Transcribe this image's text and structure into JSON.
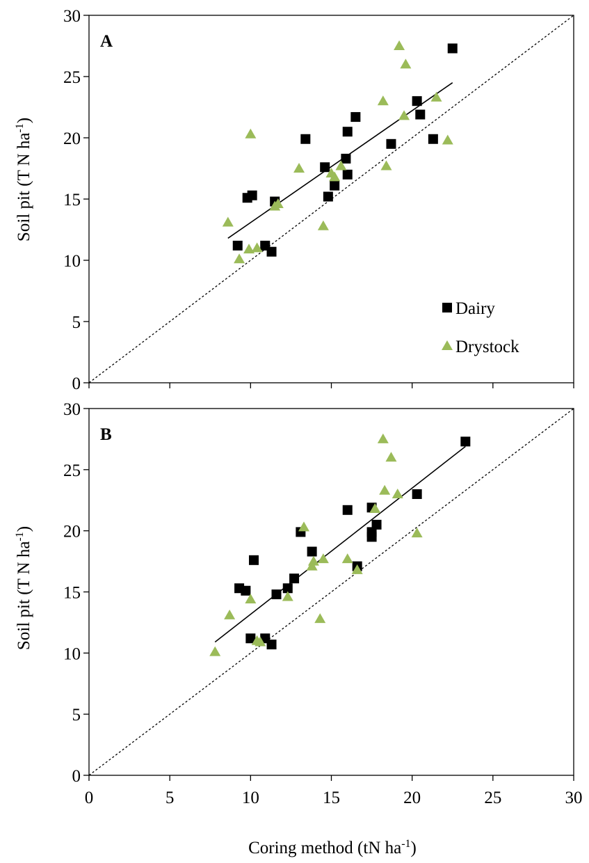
{
  "figure": {
    "xlabel_main": "Coring method (tN ha",
    "xlabel_sup": "-1",
    "xlabel_tail": ")",
    "ylabel_main": "Soil pit (T N ha",
    "ylabel_sup": "-1",
    "ylabel_tail": ")"
  },
  "legend": {
    "dairy": "Dairy",
    "drystock": "Drystock"
  },
  "colors": {
    "dairy": "#000000",
    "drystock": "#9bbb59",
    "axis": "#000000"
  },
  "chart_data": [
    {
      "type": "scatter",
      "panel_label": "A",
      "xlim": [
        0,
        30
      ],
      "ylim": [
        0,
        30
      ],
      "y_ticks": [
        0,
        5,
        10,
        15,
        20,
        25,
        30
      ],
      "x_ticks": [
        0,
        5,
        10,
        15,
        20,
        25,
        30
      ],
      "show_x_tick_labels": false,
      "show_legend": true,
      "legend_position": "bottom-right",
      "one_to_one_line": true,
      "series": [
        {
          "name": "Dairy",
          "marker": "square",
          "points": [
            [
              9.2,
              11.2
            ],
            [
              9.8,
              15.1
            ],
            [
              10.1,
              15.3
            ],
            [
              10.9,
              11.2
            ],
            [
              11.3,
              10.7
            ],
            [
              11.5,
              14.8
            ],
            [
              13.4,
              19.9
            ],
            [
              14.6,
              17.6
            ],
            [
              14.8,
              15.2
            ],
            [
              15.2,
              16.1
            ],
            [
              15.9,
              18.3
            ],
            [
              16.0,
              17.0
            ],
            [
              16.0,
              20.5
            ],
            [
              16.5,
              21.7
            ],
            [
              18.7,
              19.5
            ],
            [
              20.3,
              23.0
            ],
            [
              20.5,
              21.9
            ],
            [
              21.3,
              19.9
            ],
            [
              22.5,
              27.3
            ]
          ],
          "trendline": [
            [
              8.6,
              11.8
            ],
            [
              22.5,
              24.5
            ]
          ]
        },
        {
          "name": "Drystock",
          "marker": "triangle",
          "points": [
            [
              8.6,
              13.1
            ],
            [
              9.3,
              10.1
            ],
            [
              9.9,
              10.9
            ],
            [
              10.0,
              20.3
            ],
            [
              10.4,
              11.0
            ],
            [
              11.5,
              14.4
            ],
            [
              11.7,
              14.6
            ],
            [
              13.0,
              17.5
            ],
            [
              14.5,
              12.8
            ],
            [
              15.0,
              17.1
            ],
            [
              15.2,
              16.8
            ],
            [
              15.6,
              17.7
            ],
            [
              18.2,
              23.0
            ],
            [
              18.4,
              17.7
            ],
            [
              19.2,
              27.5
            ],
            [
              19.5,
              21.8
            ],
            [
              19.6,
              26.0
            ],
            [
              21.5,
              23.3
            ],
            [
              22.2,
              19.8
            ]
          ]
        }
      ]
    },
    {
      "type": "scatter",
      "panel_label": "B",
      "xlim": [
        0,
        30
      ],
      "ylim": [
        0,
        30
      ],
      "y_ticks": [
        0,
        5,
        10,
        15,
        20,
        25,
        30
      ],
      "x_ticks": [
        0,
        5,
        10,
        15,
        20,
        25,
        30
      ],
      "show_x_tick_labels": true,
      "show_legend": false,
      "one_to_one_line": true,
      "series": [
        {
          "name": "Dairy",
          "marker": "square",
          "points": [
            [
              9.3,
              15.3
            ],
            [
              9.7,
              15.1
            ],
            [
              10.0,
              11.2
            ],
            [
              10.2,
              17.6
            ],
            [
              10.9,
              11.2
            ],
            [
              11.3,
              10.7
            ],
            [
              11.6,
              14.8
            ],
            [
              12.3,
              15.3
            ],
            [
              12.7,
              16.1
            ],
            [
              13.1,
              19.9
            ],
            [
              13.8,
              18.3
            ],
            [
              16.0,
              21.7
            ],
            [
              16.6,
              17.1
            ],
            [
              17.5,
              19.5
            ],
            [
              17.5,
              19.9
            ],
            [
              17.5,
              21.9
            ],
            [
              17.8,
              20.5
            ],
            [
              20.3,
              23.0
            ],
            [
              23.3,
              27.3
            ]
          ],
          "trendline": [
            [
              7.8,
              10.9
            ],
            [
              23.3,
              26.9
            ]
          ]
        },
        {
          "name": "Drystock",
          "marker": "triangle",
          "points": [
            [
              7.8,
              10.1
            ],
            [
              8.7,
              13.1
            ],
            [
              10.0,
              14.4
            ],
            [
              10.4,
              11.0
            ],
            [
              10.6,
              10.9
            ],
            [
              12.3,
              14.6
            ],
            [
              13.3,
              20.3
            ],
            [
              13.8,
              17.1
            ],
            [
              13.9,
              17.5
            ],
            [
              14.3,
              12.8
            ],
            [
              14.5,
              17.7
            ],
            [
              16.0,
              17.7
            ],
            [
              16.6,
              16.8
            ],
            [
              17.7,
              21.8
            ],
            [
              18.2,
              27.5
            ],
            [
              18.3,
              23.3
            ],
            [
              18.7,
              26.0
            ],
            [
              19.1,
              23.0
            ],
            [
              20.3,
              19.8
            ]
          ]
        }
      ]
    }
  ]
}
